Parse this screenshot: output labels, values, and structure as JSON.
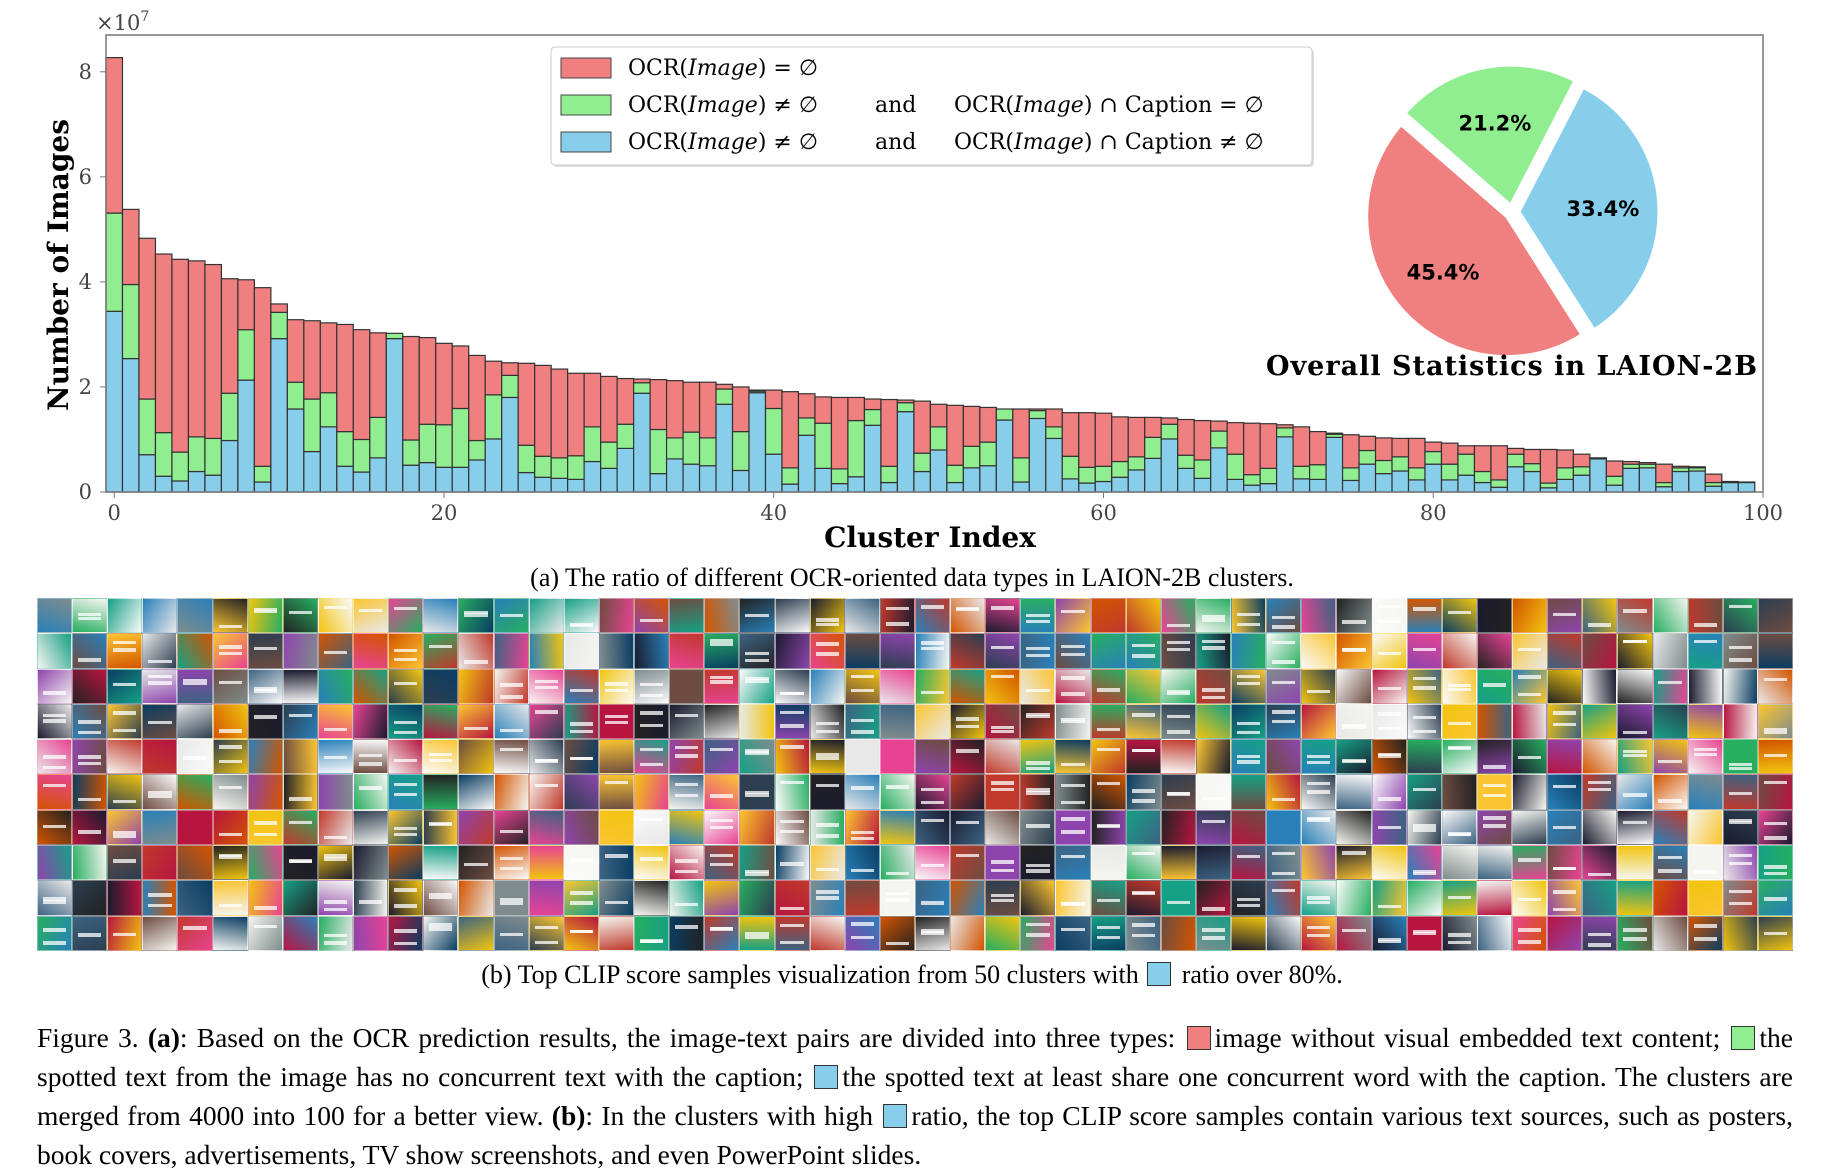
{
  "chart_data": {
    "type": "bar",
    "stacked": true,
    "xlabel": "Cluster Index",
    "ylabel": "Number of Images",
    "y_multiplier": "×10",
    "y_multiplier_exp": "7",
    "xlim": [
      -0.5,
      100
    ],
    "ylim": [
      0,
      8.7
    ],
    "xticks": [
      "0",
      "20",
      "40",
      "60",
      "80",
      "100"
    ],
    "yticks": [
      "0",
      "2",
      "4",
      "6",
      "8"
    ],
    "grid": false,
    "legend_placement": "top-center",
    "series_colors": {
      "no_text": "#F08080",
      "text_no_overlap": "#90EE90",
      "text_overlap": "#87CEEB"
    },
    "note": "values in units of 1e7 images; stack_total = all three types, stack_text = green+blue, stack_overlap = blue",
    "stack_total": [
      8.27,
      5.38,
      4.83,
      4.53,
      4.43,
      4.4,
      4.33,
      4.06,
      4.04,
      3.89,
      3.58,
      3.28,
      3.26,
      3.22,
      3.19,
      3.09,
      3.03,
      3.02,
      2.96,
      2.94,
      2.83,
      2.78,
      2.6,
      2.49,
      2.46,
      2.45,
      2.41,
      2.34,
      2.26,
      2.26,
      2.2,
      2.16,
      2.15,
      2.14,
      2.12,
      2.09,
      2.09,
      2.05,
      2.0,
      1.94,
      1.94,
      1.91,
      1.87,
      1.81,
      1.8,
      1.8,
      1.77,
      1.76,
      1.75,
      1.73,
      1.67,
      1.65,
      1.63,
      1.61,
      1.58,
      1.58,
      1.58,
      1.58,
      1.51,
      1.51,
      1.5,
      1.43,
      1.42,
      1.42,
      1.41,
      1.38,
      1.36,
      1.35,
      1.32,
      1.31,
      1.3,
      1.28,
      1.24,
      1.15,
      1.12,
      1.09,
      1.06,
      1.03,
      1.02,
      1.02,
      0.95,
      0.93,
      0.88,
      0.88,
      0.88,
      0.83,
      0.81,
      0.81,
      0.8,
      0.72,
      0.65,
      0.59,
      0.58,
      0.56,
      0.53,
      0.49,
      0.48,
      0.34,
      0.2,
      0.19
    ],
    "stack_text": [
      5.31,
      3.95,
      1.77,
      1.13,
      0.76,
      1.05,
      1.02,
      1.88,
      3.09,
      0.49,
      3.42,
      2.09,
      1.77,
      1.89,
      1.15,
      1.0,
      1.42,
      3.02,
      0.99,
      1.29,
      1.28,
      1.59,
      0.98,
      1.85,
      2.22,
      0.89,
      0.68,
      0.65,
      0.69,
      1.24,
      0.95,
      1.29,
      2.08,
      1.19,
      1.03,
      1.14,
      1.03,
      1.96,
      1.15,
      1.92,
      1.59,
      0.46,
      1.41,
      1.31,
      0.44,
      1.36,
      1.57,
      0.49,
      1.7,
      0.74,
      1.24,
      0.51,
      0.87,
      0.95,
      1.58,
      0.65,
      1.55,
      1.24,
      0.68,
      0.47,
      0.49,
      0.58,
      0.67,
      1.04,
      1.29,
      0.7,
      0.61,
      1.16,
      0.72,
      0.33,
      0.45,
      1.22,
      0.49,
      0.52,
      1.1,
      0.46,
      0.79,
      0.6,
      0.67,
      0.46,
      0.77,
      0.53,
      0.72,
      0.39,
      0.23,
      0.72,
      0.54,
      0.17,
      0.46,
      0.48,
      0.64,
      0.3,
      0.53,
      0.53,
      0.18,
      0.46,
      0.46,
      0.18,
      0.19,
      0.18
    ],
    "stack_overlap": [
      3.44,
      2.54,
      0.71,
      0.3,
      0.21,
      0.39,
      0.32,
      0.98,
      2.13,
      0.19,
      2.92,
      1.58,
      0.77,
      1.24,
      0.49,
      0.38,
      0.65,
      2.92,
      0.51,
      0.56,
      0.47,
      0.47,
      0.61,
      1.01,
      1.8,
      0.37,
      0.28,
      0.26,
      0.24,
      0.58,
      0.45,
      0.83,
      1.88,
      0.35,
      0.63,
      0.53,
      0.5,
      1.67,
      0.41,
      1.89,
      0.72,
      0.15,
      1.08,
      0.45,
      0.16,
      0.29,
      1.27,
      0.18,
      1.53,
      0.39,
      0.8,
      0.18,
      0.46,
      0.5,
      1.37,
      0.19,
      1.4,
      1.02,
      0.25,
      0.17,
      0.2,
      0.28,
      0.42,
      0.64,
      1.01,
      0.45,
      0.26,
      0.84,
      0.24,
      0.13,
      0.16,
      1.05,
      0.25,
      0.24,
      1.04,
      0.22,
      0.53,
      0.35,
      0.4,
      0.23,
      0.53,
      0.23,
      0.32,
      0.18,
      0.09,
      0.48,
      0.39,
      0.08,
      0.24,
      0.32,
      0.63,
      0.13,
      0.45,
      0.46,
      0.1,
      0.39,
      0.4,
      0.11,
      0.18,
      0.18
    ],
    "legend": [
      {
        "color": "#F08080",
        "lhs_pre": "OCR(",
        "lhs_it": "Image",
        "lhs_post": ") = ∅",
        "conj": "",
        "rhs_pre": "",
        "rhs_it": "",
        "rhs_post": ""
      },
      {
        "color": "#90EE90",
        "lhs_pre": "OCR(",
        "lhs_it": "Image",
        "lhs_post": ") ≠ ∅",
        "conj": "and",
        "rhs_pre": "OCR(",
        "rhs_it": "Image",
        "rhs_post": ") ∩ Caption = ∅"
      },
      {
        "color": "#87CEEB",
        "lhs_pre": "OCR(",
        "lhs_it": "Image",
        "lhs_post": ") ≠ ∅",
        "conj": "and",
        "rhs_pre": "OCR(",
        "rhs_it": "Image",
        "rhs_post": ") ∩ Caption ≠ ∅"
      }
    ],
    "pie": {
      "type": "pie",
      "title": "Overall Statistics in LAION-2B",
      "slices": [
        {
          "label": "45.4%",
          "value": 45.4,
          "color": "#F08080"
        },
        {
          "label": "33.4%",
          "value": 33.4,
          "color": "#87CEEB"
        },
        {
          "label": "21.2%",
          "value": 21.2,
          "color": "#90EE90"
        }
      ],
      "start_angle_deg": 139,
      "explode": 0.05
    }
  },
  "captions": {
    "a": "(a) The ratio of different OCR-oriented data types in LAION-2B clusters.",
    "b_pre": "(b) Top CLIP score samples visualization from 50 clusters with",
    "b_post": "ratio over 80%."
  },
  "mosaic": {
    "columns": 50,
    "rows": 10
  },
  "figure_caption": {
    "label": "Figure 3.",
    "a_bold": "(a)",
    "t1": ": Based on the OCR prediction results, the image-text pairs are divided into three types:",
    "t2": "image without visual embedded text content;",
    "t3": "the spotted text from the image has no concurrent text with the caption;",
    "t4": "the spotted text at least share one concurrent word with the caption. The clusters are merged from 4000 into 100 for a better view.",
    "b_bold": "(b)",
    "t5": ": In the clusters with high",
    "t6": "ratio, the top CLIP score samples contain various text sources, such as posters, book covers, advertisements, TV show screenshots, and even PowerPoint slides."
  }
}
